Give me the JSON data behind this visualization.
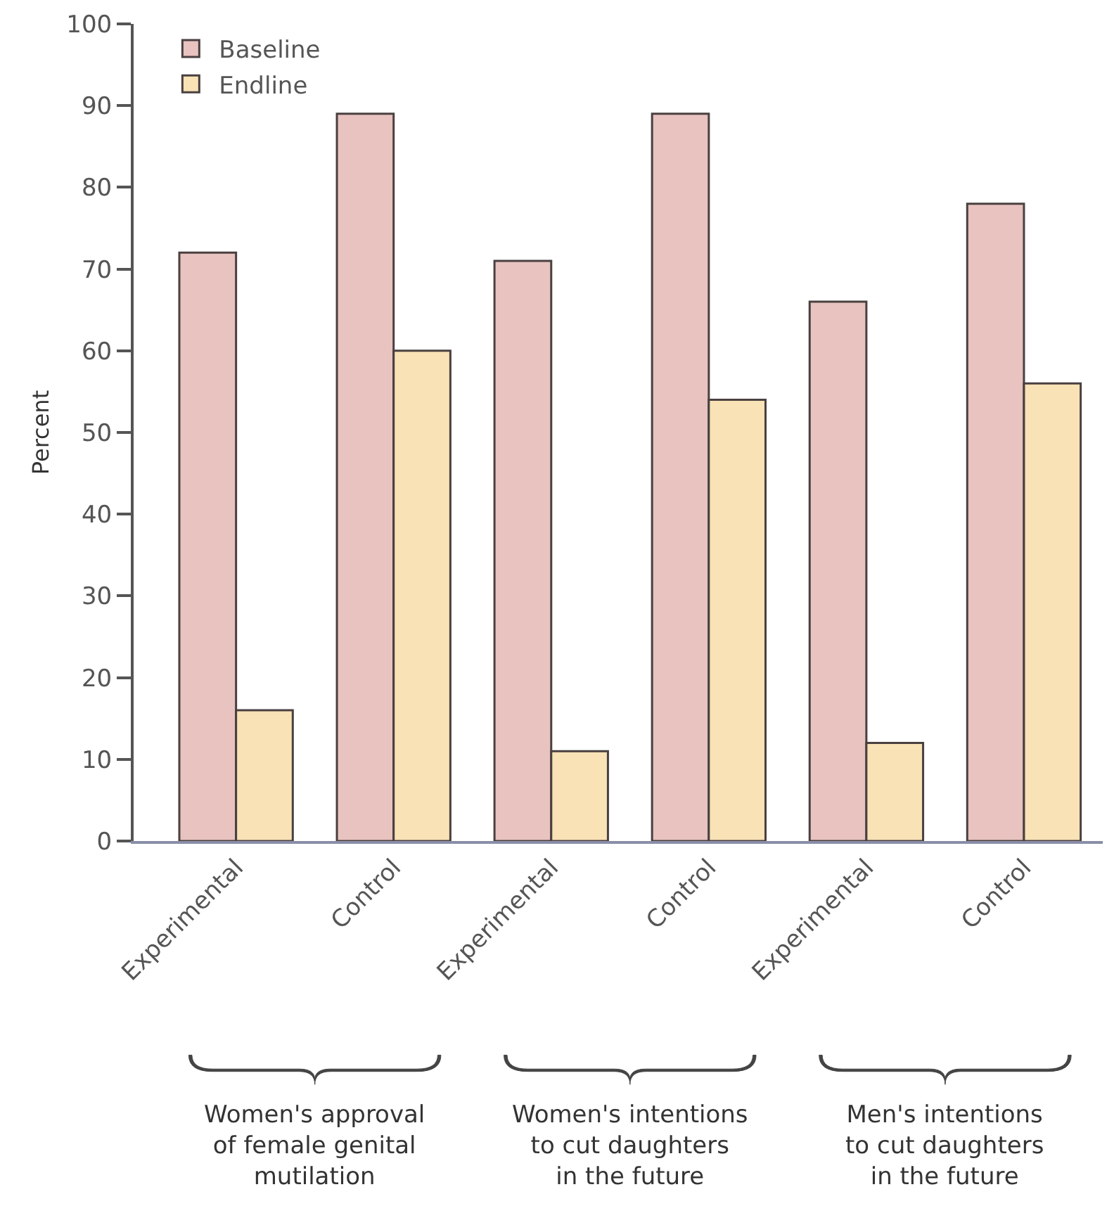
{
  "chart_data": {
    "type": "bar",
    "ylabel": "Percent",
    "categories": [
      "Experimental",
      "Control",
      "Experimental",
      "Control",
      "Experimental",
      "Control"
    ],
    "series": [
      {
        "name": "Baseline",
        "color": "#e8c3c0",
        "values": [
          72,
          89,
          71,
          89,
          66,
          78
        ]
      },
      {
        "name": "Endline",
        "color": "#f8e2b6",
        "values": [
          16,
          60,
          11,
          54,
          12,
          56
        ]
      }
    ],
    "ylim": [
      0,
      100
    ],
    "yticks": [
      0,
      10,
      20,
      30,
      40,
      50,
      60,
      70,
      80,
      90,
      100
    ],
    "legend": "top left",
    "annotations": [
      "Women's approval of female genital mutilation",
      "Women's intentions to cut daughters in the future",
      "Men's intentions to cut daughters in the future"
    ]
  }
}
